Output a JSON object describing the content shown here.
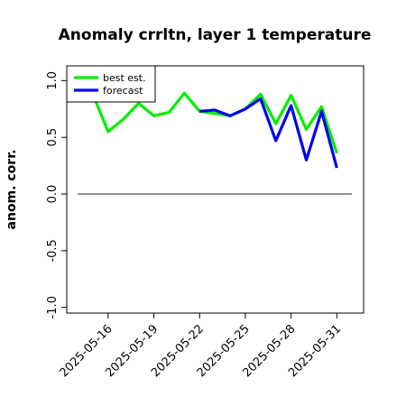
{
  "chart_data": {
    "type": "line",
    "title": "Anomaly crrltn, layer 1 temperature",
    "xlabel": "",
    "ylabel": "anom. corr.",
    "x": [
      "2025-05-14",
      "2025-05-15",
      "2025-05-16",
      "2025-05-17",
      "2025-05-18",
      "2025-05-19",
      "2025-05-20",
      "2025-05-21",
      "2025-05-22",
      "2025-05-23",
      "2025-05-24",
      "2025-05-25",
      "2025-05-26",
      "2025-05-27",
      "2025-05-28",
      "2025-05-29",
      "2025-05-30",
      "2025-05-31"
    ],
    "x_tick_labels": [
      "2025-05-16",
      "2025-05-19",
      "2025-05-22",
      "2025-05-25",
      "2025-05-28",
      "2025-05-31"
    ],
    "highlight_tick": "2025-05-22",
    "highlight_color": "#008000",
    "ylim": [
      -1.05,
      1.13
    ],
    "y_ticks": [
      "-1.0",
      "-0.5",
      "0.0",
      "0.5",
      "1.0"
    ],
    "reference_line": 0.0,
    "legend_position": "top-left",
    "series": [
      {
        "name": "best est.",
        "color": "#00ee00",
        "values": [
          null,
          0.88,
          0.55,
          0.66,
          0.8,
          0.69,
          0.72,
          0.89,
          0.73,
          0.71,
          0.69,
          0.75,
          0.88,
          0.62,
          0.87,
          0.57,
          0.77,
          0.36
        ]
      },
      {
        "name": "forecast",
        "color": "#0000ee",
        "values": [
          null,
          null,
          null,
          null,
          null,
          null,
          null,
          null,
          0.73,
          0.74,
          0.69,
          0.75,
          0.84,
          0.47,
          0.78,
          0.3,
          0.73,
          0.23
        ]
      }
    ]
  }
}
